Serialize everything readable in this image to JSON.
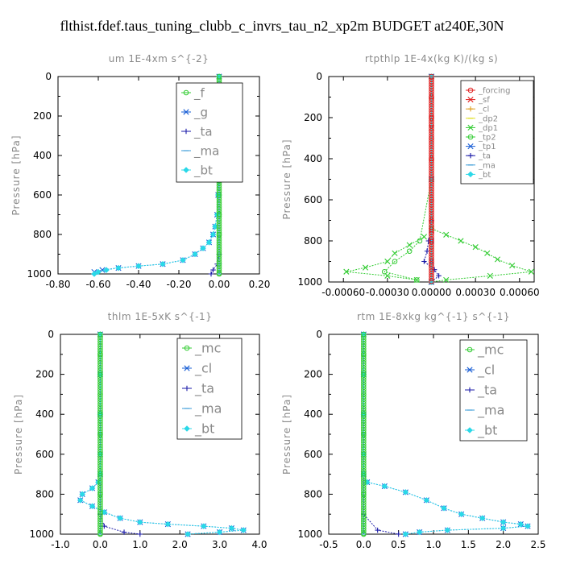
{
  "suptitle": "flthist.fdef.taus_tuning_clubb_c_invrs_tau_n2_xp2m  BUDGET at240E,30N",
  "colors": {
    "axes": "#000000",
    "text": "#000000",
    "label_gray": "#8a8a8a",
    "green": "#33cc33",
    "red": "#e02020",
    "blue": "#1a5fd6",
    "dark_blue": "#1a1aa8",
    "cyan": "#2ad8e8",
    "light_blue": "#3a9bd8"
  },
  "chart_data": [
    {
      "type": "line",
      "title": "um   1E-4xm s^{-2}",
      "ylabel": "Pressure [hPa]",
      "xlim": [
        -0.8,
        0.2
      ],
      "ylim": [
        1000,
        0
      ],
      "xticks": [
        "-0.80",
        "-0.60",
        "-0.40",
        "-0.20",
        "0.00",
        "0.20"
      ],
      "yticks": [
        "0",
        "200",
        "400",
        "600",
        "800",
        "1000"
      ],
      "legend_position": "top-right",
      "series": [
        {
          "name": "_f",
          "color": "#33cc33",
          "marker": "circle",
          "y": [
            0,
            100,
            200,
            300,
            400,
            500,
            600,
            700,
            800,
            900,
            1000
          ],
          "x": [
            0,
            0,
            0,
            0,
            0,
            0,
            0,
            0,
            0,
            0,
            0
          ]
        },
        {
          "name": "_g",
          "color": "#1a5fd6",
          "marker": "x",
          "y": [
            0,
            200,
            400,
            600,
            700,
            760,
            800,
            840,
            870,
            900,
            930,
            950,
            960,
            970,
            980,
            990
          ],
          "x": [
            0,
            0,
            0,
            -0.005,
            -0.01,
            -0.02,
            -0.03,
            -0.05,
            -0.08,
            -0.12,
            -0.18,
            -0.28,
            -0.4,
            -0.5,
            -0.58,
            -0.62
          ]
        },
        {
          "name": "_ta",
          "color": "#1a1aa8",
          "marker": "plus",
          "y": [
            0,
            500,
            900,
            950,
            980,
            1000
          ],
          "x": [
            0,
            0,
            0,
            -0.01,
            -0.03,
            -0.04
          ]
        },
        {
          "name": "_ma",
          "color": "#3a9bd8",
          "marker": "dash",
          "y": [
            0,
            500,
            950,
            1000
          ],
          "x": [
            0,
            0,
            0,
            0
          ]
        },
        {
          "name": "_bt",
          "color": "#2ad8e8",
          "marker": "diamond",
          "y": [
            0,
            200,
            400,
            600,
            700,
            760,
            800,
            840,
            870,
            900,
            930,
            950,
            960,
            970,
            980,
            990,
            1000
          ],
          "x": [
            0,
            0,
            0,
            -0.005,
            -0.01,
            -0.02,
            -0.03,
            -0.05,
            -0.08,
            -0.12,
            -0.18,
            -0.28,
            -0.4,
            -0.5,
            -0.56,
            -0.6,
            -0.62
          ]
        }
      ]
    },
    {
      "type": "line",
      "title": "rtpthlp   1E-4x(kg K)/(kg s)",
      "ylabel": "Pressure [hPa]",
      "xlim": [
        -0.0007,
        0.0007
      ],
      "ylim": [
        1000,
        0
      ],
      "xticks": [
        "-0.00060",
        "-0.00030",
        "0.00000",
        "0.00030",
        "0.00060"
      ],
      "yticks": [
        "0",
        "200",
        "400",
        "600",
        "800",
        "1000"
      ],
      "legend_position": "top-right",
      "series": [
        {
          "name": "_forcing",
          "color": "#e02020",
          "marker": "circle",
          "y": [
            0,
            100,
            200,
            300,
            400,
            500,
            600,
            700,
            800,
            900,
            1000
          ],
          "x": [
            0,
            0,
            0,
            0,
            0,
            0,
            0,
            0,
            0,
            0,
            0
          ]
        },
        {
          "name": "_sf",
          "color": "#e02020",
          "marker": "x",
          "y": [
            0,
            250,
            500,
            750,
            1000
          ],
          "x": [
            0,
            0,
            0,
            0,
            0
          ]
        },
        {
          "name": "_cl",
          "color": "#e0a020",
          "marker": "plus",
          "y": [
            0,
            500,
            1000
          ],
          "x": [
            0,
            0,
            0
          ]
        },
        {
          "name": "_dp2",
          "color": "#e0e020",
          "marker": "dash",
          "y": [
            0,
            500,
            1000
          ],
          "x": [
            0,
            0,
            0
          ]
        },
        {
          "name": "_dp1",
          "color": "#33cc33",
          "marker": "x",
          "y": [
            0,
            500,
            740,
            770,
            800,
            830,
            860,
            890,
            920,
            950,
            970,
            990,
            1000
          ],
          "x": [
            0,
            0,
            0,
            0.0001,
            0.0002,
            0.0003,
            0.00038,
            0.00045,
            0.00055,
            0.00068,
            0.0004,
            0.0001,
            0
          ],
          "y2": [
            780,
            820,
            860,
            900,
            930,
            950,
            970,
            990
          ],
          "x2": [
            -5e-05,
            -0.00015,
            -0.00025,
            -0.0003,
            -0.00045,
            -0.00058,
            -0.0003,
            -0.0001
          ]
        },
        {
          "name": "_tp2",
          "color": "#33cc33",
          "marker": "circle",
          "y": [
            0,
            500,
            800,
            850,
            900,
            950,
            990
          ],
          "x": [
            0,
            0,
            -8e-05,
            -0.00015,
            -0.00025,
            -0.00032,
            -0.0001
          ]
        },
        {
          "name": "_tp1",
          "color": "#1a5fd6",
          "marker": "x",
          "y": [
            0,
            500,
            800,
            900,
            1000
          ],
          "x": [
            0,
            0,
            0,
            0,
            0
          ]
        },
        {
          "name": "_ta",
          "color": "#1a1aa8",
          "marker": "plus",
          "y": [
            0,
            700,
            800,
            850,
            900,
            940,
            970,
            1000
          ],
          "x": [
            0,
            0,
            -2e-05,
            -3e-05,
            -5e-05,
            2e-05,
            5e-05,
            0
          ]
        },
        {
          "name": "_ma",
          "color": "#3a9bd8",
          "marker": "dash",
          "y": [
            0,
            500,
            1000
          ],
          "x": [
            0,
            0,
            0
          ]
        },
        {
          "name": "_bt",
          "color": "#2ad8e8",
          "marker": "diamond",
          "y": [
            0,
            500,
            1000
          ],
          "x": [
            0,
            0,
            0
          ]
        }
      ]
    },
    {
      "type": "line",
      "title": "thlm   1E-5xK s^{-1}",
      "ylabel": "Pressure [hPa]",
      "xlim": [
        -1.0,
        4.0
      ],
      "ylim": [
        1000,
        0
      ],
      "xticks": [
        "-1.0",
        "0.0",
        "1.0",
        "2.0",
        "3.0",
        "4.0"
      ],
      "yticks": [
        "0",
        "200",
        "400",
        "600",
        "800",
        "1000"
      ],
      "legend_position": "top-right",
      "series": [
        {
          "name": "_mc",
          "color": "#33cc33",
          "marker": "circle",
          "y": [
            0,
            100,
            200,
            300,
            400,
            500,
            600,
            700,
            800,
            900,
            1000
          ],
          "x": [
            0,
            0,
            0,
            0,
            0,
            0,
            0,
            0,
            0,
            0,
            0
          ]
        },
        {
          "name": "_cl",
          "color": "#1a5fd6",
          "marker": "x",
          "y": [
            0,
            200,
            400,
            600,
            700,
            740,
            770,
            800,
            830,
            860,
            890,
            920,
            940,
            950,
            960,
            970,
            980,
            990,
            1000
          ],
          "x": [
            0,
            0,
            0,
            0,
            0,
            -0.05,
            -0.2,
            -0.45,
            -0.5,
            -0.2,
            0.1,
            0.5,
            1.0,
            1.7,
            2.6,
            3.3,
            3.6,
            3.0,
            2.2
          ]
        },
        {
          "name": "_ta",
          "color": "#1a1aa8",
          "marker": "plus",
          "y": [
            0,
            900,
            960,
            990,
            1000
          ],
          "x": [
            0,
            0,
            0.1,
            0.6,
            1.0
          ]
        },
        {
          "name": "_ma",
          "color": "#3a9bd8",
          "marker": "dash",
          "y": [
            0,
            500,
            1000
          ],
          "x": [
            0,
            0,
            0
          ]
        },
        {
          "name": "_bt",
          "color": "#2ad8e8",
          "marker": "diamond",
          "y": [
            0,
            200,
            400,
            600,
            700,
            740,
            770,
            800,
            830,
            860,
            890,
            920,
            940,
            950,
            960,
            970,
            980,
            990,
            1000
          ],
          "x": [
            0,
            0,
            0,
            0,
            0,
            -0.05,
            -0.2,
            -0.45,
            -0.5,
            -0.2,
            0.1,
            0.5,
            1.0,
            1.7,
            2.6,
            3.3,
            3.6,
            3.0,
            2.2
          ]
        }
      ]
    },
    {
      "type": "line",
      "title": "rtm   1E-8xkg kg^{-1} s^{-1}",
      "ylabel": "Pressure [hPa]",
      "xlim": [
        -0.5,
        2.5
      ],
      "ylim": [
        1000,
        0
      ],
      "xticks": [
        "-0.5",
        "0.0",
        "0.5",
        "1.0",
        "1.5",
        "2.0",
        "2.5"
      ],
      "yticks": [
        "0",
        "200",
        "400",
        "600",
        "800",
        "1000"
      ],
      "legend_position": "top-right",
      "series": [
        {
          "name": "_mc",
          "color": "#33cc33",
          "marker": "circle",
          "y": [
            0,
            100,
            200,
            300,
            400,
            500,
            600,
            700,
            800,
            900,
            1000
          ],
          "x": [
            0,
            0,
            0,
            0,
            0,
            0,
            0,
            0,
            0,
            0,
            0
          ]
        },
        {
          "name": "_cl",
          "color": "#1a5fd6",
          "marker": "x",
          "y": [
            0,
            200,
            400,
            600,
            700,
            740,
            760,
            790,
            830,
            870,
            900,
            920,
            940,
            950,
            960,
            970,
            980,
            990,
            1000
          ],
          "x": [
            0,
            0,
            0,
            0,
            0,
            0.05,
            0.3,
            0.6,
            0.9,
            1.15,
            1.4,
            1.7,
            2.0,
            2.25,
            2.35,
            2.0,
            1.2,
            0.8,
            0.6
          ]
        },
        {
          "name": "_ta",
          "color": "#1a1aa8",
          "marker": "plus",
          "y": [
            0,
            900,
            980,
            1000
          ],
          "x": [
            0,
            0,
            0.2,
            0.5
          ]
        },
        {
          "name": "_ma",
          "color": "#3a9bd8",
          "marker": "dash",
          "y": [
            0,
            500,
            1000
          ],
          "x": [
            0,
            0,
            0
          ]
        },
        {
          "name": "_bt",
          "color": "#2ad8e8",
          "marker": "diamond",
          "y": [
            0,
            200,
            400,
            600,
            700,
            740,
            760,
            790,
            830,
            870,
            900,
            920,
            940,
            950,
            960,
            970,
            980,
            990,
            1000
          ],
          "x": [
            0,
            0,
            0,
            0,
            0,
            0.05,
            0.3,
            0.6,
            0.9,
            1.15,
            1.4,
            1.7,
            2.0,
            2.25,
            2.35,
            2.0,
            1.2,
            0.8,
            0.6
          ]
        }
      ]
    }
  ]
}
